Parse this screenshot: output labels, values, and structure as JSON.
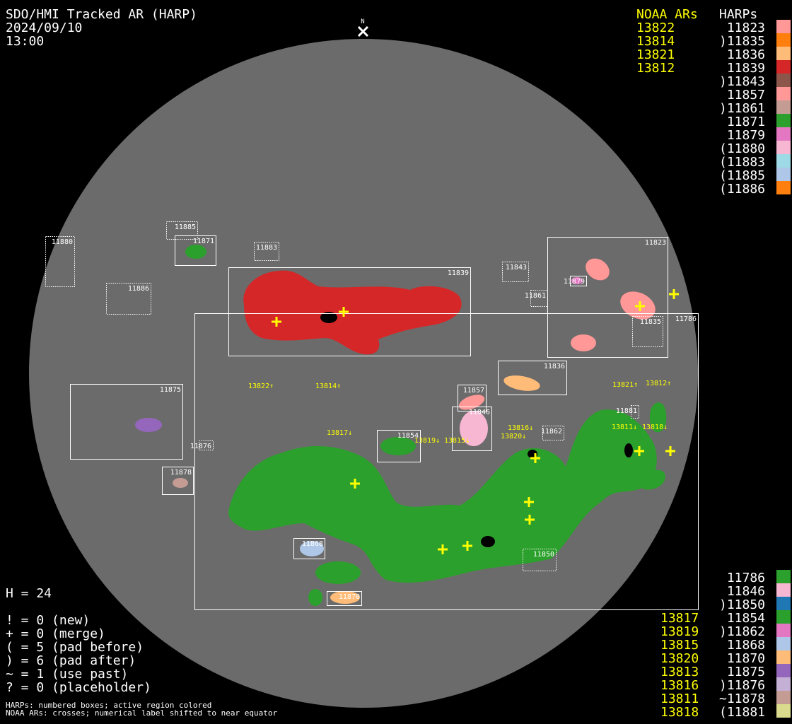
{
  "header": {
    "title": "SDO/HMI Tracked AR (HARP)",
    "date": "2024/09/10",
    "time": "13:00",
    "north_label": "N"
  },
  "legend_top": {
    "noaa_heading": "NOAA ARs",
    "harps_heading": "HARPs",
    "noaa": [
      "13822",
      "13814",
      "13821",
      "13812"
    ],
    "harps": [
      {
        "label": " 11823",
        "color": "#ff9896"
      },
      {
        "label": ")11835",
        "color": "#ff7f0e"
      },
      {
        "label": " 11836",
        "color": "#ffbb78"
      },
      {
        "label": " 11839",
        "color": "#d62728"
      },
      {
        "label": ")11843",
        "color": "#8c564b"
      },
      {
        "label": " 11857",
        "color": "#ff9896"
      },
      {
        "label": ")11861",
        "color": "#c49c94"
      },
      {
        "label": " 11871",
        "color": "#2ca02c"
      },
      {
        "label": " 11879",
        "color": "#e377c2"
      },
      {
        "label": "(11880",
        "color": "#f7b6d2"
      },
      {
        "label": "(11883",
        "color": "#9edae5"
      },
      {
        "label": "(11885",
        "color": "#aec7e8"
      },
      {
        "label": "(11886",
        "color": "#ff7f0e"
      }
    ]
  },
  "legend_bottom": {
    "noaa": [
      "13817",
      "13819",
      "13815",
      "13820",
      "13813",
      "13816",
      "13811",
      "13818"
    ],
    "harps": [
      {
        "label": " 11786",
        "color": "#2ca02c"
      },
      {
        "label": " 11846",
        "color": "#f7b6d2"
      },
      {
        "label": ")11850",
        "color": "#1f77b4"
      },
      {
        "label": " 11854",
        "color": "#2ca02c"
      },
      {
        "label": ")11862",
        "color": "#e377c2"
      },
      {
        "label": " 11868",
        "color": "#aec7e8"
      },
      {
        "label": " 11870",
        "color": "#ffbb78"
      },
      {
        "label": " 11875",
        "color": "#9467bd"
      },
      {
        "label": ")11876",
        "color": "#c5b0d5"
      },
      {
        "label": "~11878",
        "color": "#c49c94"
      },
      {
        "label": "(11881",
        "color": "#dbdb8d"
      }
    ]
  },
  "stats": {
    "h": "H = 24",
    "lines": [
      "! = 0 (new)",
      "+ = 0 (merge)",
      "( = 5 (pad before)",
      ") = 6 (pad after)",
      "~ = 1 (use past)",
      "? = 0 (placeholder)"
    ]
  },
  "footnote": [
    "HARPs: numbered boxes; active region colored",
    "NOAA ARs: crosses; numerical label shifted to near equator"
  ],
  "disk": {
    "background": "#6b6b6b",
    "box_color": "#ffffff",
    "noaa_color": "#ffff00"
  },
  "harp_boxes": [
    {
      "id": "11880",
      "style": "dotted"
    },
    {
      "id": "11885",
      "style": "dotted"
    },
    {
      "id": "11871",
      "style": "solid"
    },
    {
      "id": "11883",
      "style": "dotted"
    },
    {
      "id": "11886",
      "style": "dotted"
    },
    {
      "id": "11839",
      "style": "solid"
    },
    {
      "id": "11843",
      "style": "dotted"
    },
    {
      "id": "11861",
      "style": "dotted"
    },
    {
      "id": "11823",
      "style": "solid"
    },
    {
      "id": "11879",
      "style": "solid"
    },
    {
      "id": "11835",
      "style": "dotted"
    },
    {
      "id": "11786",
      "style": "solid"
    },
    {
      "id": "11836",
      "style": "solid"
    },
    {
      "id": "11875",
      "style": "solid"
    },
    {
      "id": "11876",
      "style": "dotted"
    },
    {
      "id": "11857",
      "style": "solid"
    },
    {
      "id": "11846",
      "style": "solid"
    },
    {
      "id": "11854",
      "style": "solid"
    },
    {
      "id": "11862",
      "style": "dotted"
    },
    {
      "id": "11881",
      "style": "dotted"
    },
    {
      "id": "11878",
      "style": "solid"
    },
    {
      "id": "11868",
      "style": "solid"
    },
    {
      "id": "11850",
      "style": "dotted"
    },
    {
      "id": "11870",
      "style": "solid"
    }
  ],
  "noaa_labels": [
    "13822↑",
    "13814↑",
    "13821↑",
    "13812↑",
    "13817↓",
    "13819↓",
    "13815↓",
    "13816↓",
    "13820↓",
    "13811↓",
    "13818↓"
  ]
}
